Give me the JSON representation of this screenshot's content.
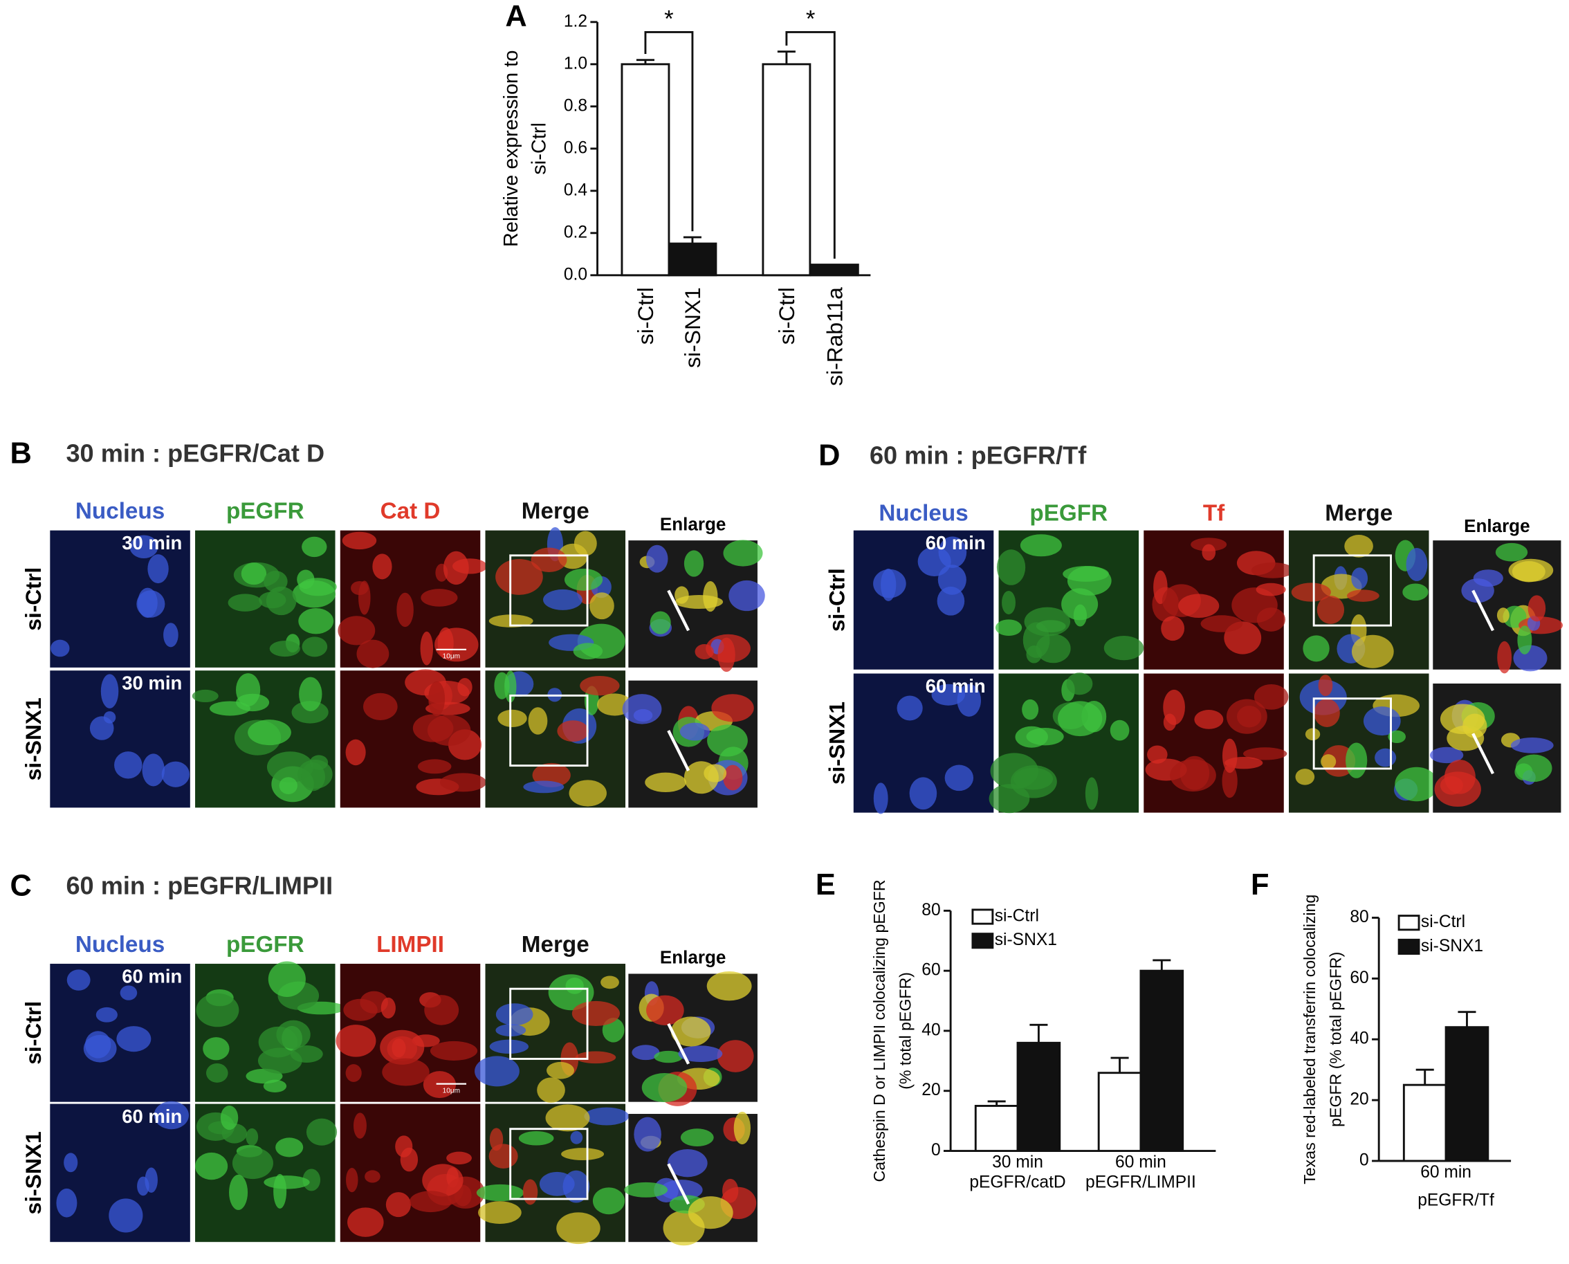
{
  "chart_data": [
    {
      "type": "bar",
      "panel_label": "A",
      "ylabel_lines": [
        "Relative expression to",
        "si-Ctrl"
      ],
      "categories": [
        "si-Ctrl",
        "si-SNX1",
        "si-Ctrl",
        "si-Rab11a"
      ],
      "values": [
        1.0,
        0.15,
        1.0,
        0.05
      ],
      "errors": [
        0.02,
        0.03,
        0.06,
        0.0
      ],
      "colors": [
        "#ffffff",
        "#111111",
        "#ffffff",
        "#111111"
      ],
      "ylim": [
        0,
        1.2
      ],
      "yticks": [
        {
          "value": 0,
          "label": "0.0"
        },
        {
          "value": 0.2,
          "label": "0.2"
        },
        {
          "value": 0.4,
          "label": "0.4"
        },
        {
          "value": 0.6,
          "label": "0.6"
        },
        {
          "value": 0.8,
          "label": "0.8"
        },
        {
          "value": 1.0,
          "label": "1.0"
        },
        {
          "value": 1.2,
          "label": "1.2"
        }
      ],
      "significance": [
        {
          "label": "*",
          "between": [
            0,
            1
          ]
        },
        {
          "label": "*",
          "between": [
            2,
            3
          ]
        }
      ]
    },
    {
      "type": "grouped_bar",
      "panel_label": "E",
      "ylabel_lines": [
        "Cathespin D or LIMPII colocalizing pEGFR",
        "(% total pEGFR)"
      ],
      "categories": [
        [
          "30 min",
          "pEGFR/catD"
        ],
        [
          "60 min",
          "pEGFR/LIMPII"
        ]
      ],
      "series": [
        {
          "name": "si-Ctrl",
          "color": "#ffffff",
          "values": [
            15,
            26
          ],
          "errors": [
            1.5,
            5
          ]
        },
        {
          "name": "si-SNX1",
          "color": "#111111",
          "values": [
            36,
            60
          ],
          "errors": [
            6,
            3.5
          ]
        }
      ],
      "ylim": [
        0,
        80
      ],
      "yticks": [
        0,
        20,
        40,
        60,
        80
      ]
    },
    {
      "type": "grouped_bar",
      "panel_label": "F",
      "ylabel_lines": [
        "Texas red-labeled transferrin colocalizing",
        "pEGFR (% total pEGFR)"
      ],
      "categories": [
        [
          "60 min"
        ]
      ],
      "xlabel": "pEGFR/Tf",
      "series": [
        {
          "name": "si-Ctrl",
          "color": "#ffffff",
          "values": [
            25
          ],
          "errors": [
            5
          ]
        },
        {
          "name": "si-SNX1",
          "color": "#111111",
          "values": [
            44
          ],
          "errors": [
            5
          ]
        }
      ],
      "ylim": [
        0,
        80
      ],
      "yticks": [
        0,
        20,
        40,
        60,
        80
      ]
    }
  ],
  "image_panels": [
    {
      "label": "B",
      "title": "30 min : pEGFR/Cat D",
      "columns": [
        "Nucleus",
        "pEGFR",
        "Cat D",
        "Merge"
      ],
      "enlarge": "Enlarge",
      "rows": [
        "si-Ctrl",
        "si-SNX1"
      ],
      "times": [
        "30 min",
        "30 min"
      ],
      "scale_label": "10μm"
    },
    {
      "label": "C",
      "title": "60 min : pEGFR/LIMPII",
      "columns": [
        "Nucleus",
        "pEGFR",
        "LIMPII",
        "Merge"
      ],
      "enlarge": "Enlarge",
      "rows": [
        "si-Ctrl",
        "si-SNX1"
      ],
      "times": [
        "60 min",
        "60 min"
      ],
      "scale_label": "10μm"
    },
    {
      "label": "D",
      "title": "60 min : pEGFR/Tf",
      "columns": [
        "Nucleus",
        "pEGFR",
        "Tf",
        "Merge"
      ],
      "enlarge": "Enlarge",
      "rows": [
        "si-Ctrl",
        "si-SNX1"
      ],
      "times": [
        "60 min",
        "60 min"
      ]
    }
  ]
}
